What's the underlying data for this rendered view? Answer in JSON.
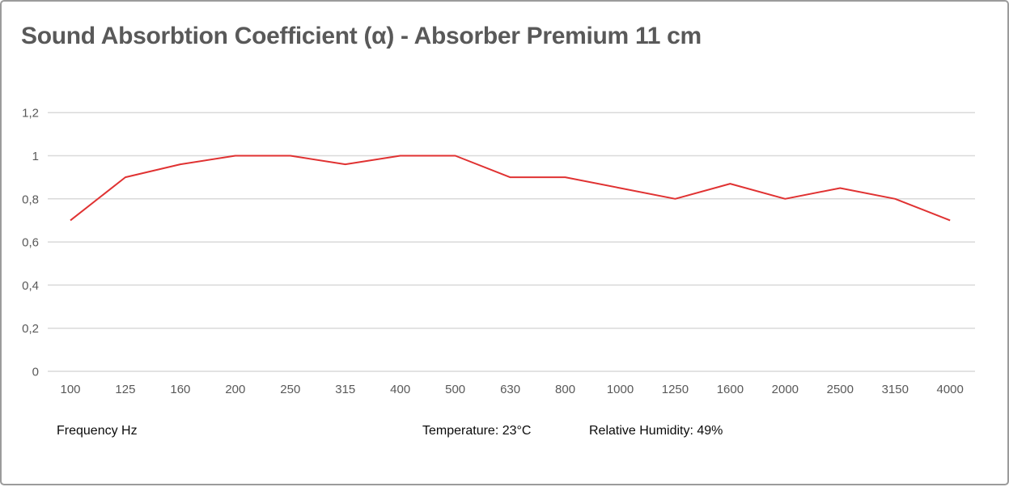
{
  "chart_data": {
    "type": "line",
    "title": "Sound Absorbtion Coefficient (α) - Absorber Premium 11 cm",
    "xlabel": "Frequency Hz",
    "ylabel": "",
    "categories": [
      "100",
      "125",
      "160",
      "200",
      "250",
      "315",
      "400",
      "500",
      "630",
      "800",
      "1000",
      "1250",
      "1600",
      "2000",
      "2500",
      "3150",
      "4000"
    ],
    "values": [
      0.7,
      0.9,
      0.96,
      1.0,
      1.0,
      0.96,
      1.0,
      1.0,
      0.9,
      0.9,
      0.85,
      0.8,
      0.87,
      0.8,
      0.85,
      0.8,
      0.7
    ],
    "series_name": "Sound absorption coefficient α",
    "ylim": [
      0,
      1.2
    ],
    "y_ticks": {
      "values": [
        0,
        0.2,
        0.4,
        0.6,
        0.8,
        1,
        1.2
      ],
      "labels": [
        "0",
        "0,2",
        "0,4",
        "0,6",
        "0,8",
        "1",
        "1,2"
      ]
    },
    "grid": "horizontal",
    "legend": "none",
    "line_color": "#e03232",
    "grid_color": "#d9d9d9",
    "axis_text_color": "#595959",
    "title_color": "#595959",
    "footer": {
      "temperature": "Temperature: 23°C",
      "humidity": "Relative Humidity: 49%"
    }
  }
}
